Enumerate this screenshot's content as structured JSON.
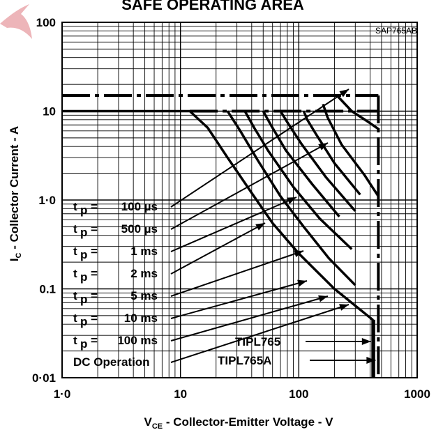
{
  "chart_data": {
    "type": "line",
    "title": "SAFE OPERATING AREA",
    "figure_code": "SAP765AB",
    "xlabel": "V",
    "xlabel_sub": "CE",
    "xlabel_rest": " - Collector-Emitter Voltage - V",
    "ylabel": "I",
    "ylabel_sub": "C",
    "ylabel_rest": " - Collector Current - A",
    "x_scale": "log",
    "y_scale": "log",
    "xlim": [
      1,
      1000
    ],
    "ylim": [
      0.01,
      100
    ],
    "x_ticks": [
      {
        "value": 1,
        "label": "1·0"
      },
      {
        "value": 10,
        "label": "10"
      },
      {
        "value": 100,
        "label": "100"
      },
      {
        "value": 1000,
        "label": "1000"
      }
    ],
    "y_ticks": [
      {
        "value": 0.01,
        "label": "0·01"
      },
      {
        "value": 0.1,
        "label": "0.1"
      },
      {
        "value": 1,
        "label": "1·0"
      },
      {
        "value": 10,
        "label": "10"
      },
      {
        "value": 100,
        "label": "100"
      }
    ],
    "grid": true,
    "legend_position": "bottom-left",
    "legend": [
      {
        "symbol": "t",
        "sub": "p",
        "eq": "=",
        "value": "100 µs"
      },
      {
        "symbol": "t",
        "sub": "p",
        "eq": "=",
        "value": "500 µs"
      },
      {
        "symbol": "t",
        "sub": "p",
        "eq": "=",
        "value": "1 ms"
      },
      {
        "symbol": "t",
        "sub": "p",
        "eq": "=",
        "value": "2 ms"
      },
      {
        "symbol": "t",
        "sub": "p",
        "eq": "=",
        "value": "5 ms"
      },
      {
        "symbol": "t",
        "sub": "p",
        "eq": "=",
        "value": "10 ms"
      },
      {
        "symbol": "t",
        "sub": "p",
        "eq": "=",
        "value": "100 ms"
      },
      {
        "text": "DC Operation"
      }
    ],
    "device_labels": [
      {
        "text": "TIPL765",
        "points_to_v": 430
      },
      {
        "text": "TIPL765A",
        "points_to_v": 470
      }
    ],
    "series": [
      {
        "points": [
          [
            1,
            10
          ],
          [
            12,
            10
          ],
          [
            17,
            6.5
          ],
          [
            25,
            3
          ],
          [
            40,
            1.2
          ],
          [
            60,
            0.55
          ],
          [
            100,
            0.25
          ],
          [
            200,
            0.1
          ],
          [
            420,
            0.045
          ],
          [
            420,
            0.01
          ]
        ]
      },
      {
        "points": [
          [
            25,
            10
          ],
          [
            32,
            6
          ],
          [
            45,
            2.8
          ],
          [
            70,
            1.1
          ],
          [
            110,
            0.5
          ],
          [
            180,
            0.22
          ],
          [
            300,
            0.11
          ]
        ]
      },
      {
        "points": [
          [
            35,
            10
          ],
          [
            42,
            6.5
          ],
          [
            55,
            3.6
          ],
          [
            90,
            1.4
          ],
          [
            150,
            0.62
          ],
          [
            280,
            0.28
          ]
        ]
      },
      {
        "points": [
          [
            50,
            10
          ],
          [
            58,
            7
          ],
          [
            78,
            3.6
          ],
          [
            130,
            1.5
          ],
          [
            220,
            0.65
          ]
        ]
      },
      {
        "points": [
          [
            70,
            10
          ],
          [
            80,
            7.5
          ],
          [
            105,
            4.3
          ],
          [
            170,
            1.8
          ],
          [
            300,
            0.75
          ]
        ]
      },
      {
        "points": [
          [
            110,
            10
          ],
          [
            118,
            8
          ],
          [
            140,
            5.5
          ],
          [
            200,
            2.6
          ],
          [
            330,
            1.15
          ]
        ]
      },
      {
        "points": [
          [
            160,
            12
          ],
          [
            175,
            8.5
          ],
          [
            230,
            4.2
          ],
          [
            360,
            1.9
          ],
          [
            470,
            1.1
          ]
        ]
      },
      {
        "points": [
          [
            210,
            15
          ],
          [
            280,
            10
          ],
          [
            390,
            7.5
          ],
          [
            470,
            6.3
          ]
        ]
      }
    ],
    "limits": {
      "ic_max_pulse": 15,
      "ic_max_dc": 10,
      "vce_max_tipl765": 430,
      "vce_max_tipl765a": 470
    }
  }
}
